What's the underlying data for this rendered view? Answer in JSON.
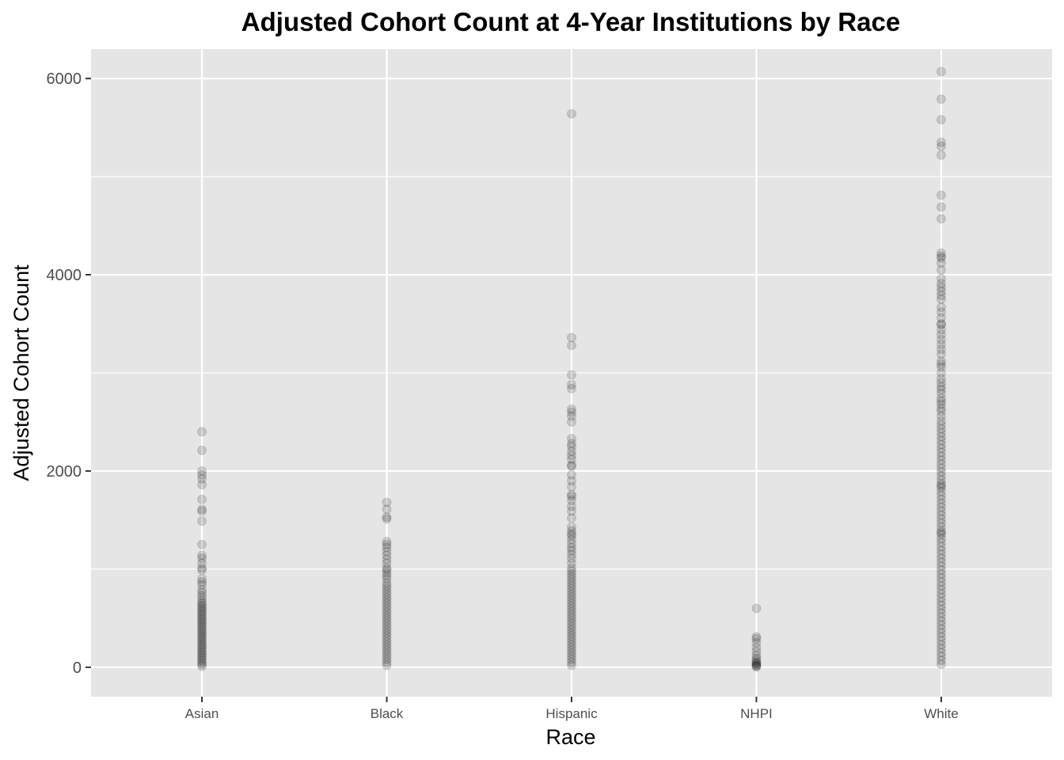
{
  "chart_data": {
    "type": "scatter",
    "title": "Adjusted Cohort Count at 4-Year Institutions by Race",
    "xlabel": "Race",
    "ylabel": "Adjusted Cohort Count",
    "categories": [
      "Asian",
      "Black",
      "Hispanic",
      "NHPI",
      "White"
    ],
    "y_ticks": [
      0,
      2000,
      4000,
      6000
    ],
    "ylim": [
      -300,
      6300
    ],
    "grid": true,
    "point_color": "#000000",
    "point_alpha": 0.15,
    "panel_color": "#e5e5e5",
    "grid_color": "#ffffff",
    "series": [
      {
        "category": "Asian",
        "values": [
          2400,
          2210,
          2000,
          1960,
          1920,
          1860,
          1710,
          1610,
          1590,
          1490,
          1250,
          1140,
          1110,
          1060,
          1010,
          990,
          900,
          870,
          840,
          790,
          760,
          730,
          700,
          670,
          650,
          630,
          610,
          590,
          570,
          550,
          530,
          510,
          490,
          470,
          450,
          430,
          410,
          390,
          370,
          350,
          330,
          310,
          290,
          270,
          250,
          230,
          210,
          190,
          170,
          150,
          130,
          110,
          90,
          70,
          50,
          30,
          10
        ]
      },
      {
        "category": "Black",
        "values": [
          1680,
          1610,
          1530,
          1510,
          1280,
          1250,
          1220,
          1180,
          1140,
          1100,
          1060,
          1010,
          990,
          960,
          930,
          900,
          860,
          830,
          800,
          770,
          740,
          710,
          680,
          650,
          620,
          590,
          560,
          530,
          500,
          470,
          440,
          410,
          380,
          350,
          320,
          290,
          260,
          230,
          200,
          170,
          140,
          110,
          80,
          50,
          20
        ]
      },
      {
        "category": "Hispanic",
        "values": [
          5640,
          3360,
          3280,
          2980,
          2880,
          2840,
          2630,
          2600,
          2560,
          2500,
          2330,
          2280,
          2250,
          2200,
          2160,
          2120,
          2060,
          2050,
          1960,
          1900,
          1840,
          1760,
          1740,
          1700,
          1640,
          1590,
          1520,
          1430,
          1390,
          1360,
          1340,
          1300,
          1260,
          1220,
          1190,
          1150,
          1110,
          1060,
          1010,
          980,
          950,
          920,
          890,
          860,
          830,
          800,
          770,
          740,
          710,
          680,
          650,
          620,
          590,
          560,
          530,
          500,
          470,
          440,
          410,
          380,
          350,
          320,
          290,
          260,
          230,
          200,
          170,
          140,
          110,
          80,
          50,
          20
        ]
      },
      {
        "category": "NHPI",
        "values": [
          600,
          310,
          290,
          250,
          200,
          160,
          120,
          90,
          70,
          50,
          40,
          30,
          20,
          10,
          5
        ]
      },
      {
        "category": "White",
        "values": [
          6070,
          5790,
          5580,
          5350,
          5310,
          5220,
          4810,
          4690,
          4570,
          4220,
          4190,
          4170,
          4120,
          4050,
          3960,
          3910,
          3870,
          3830,
          3790,
          3750,
          3670,
          3620,
          3560,
          3500,
          3490,
          3440,
          3390,
          3340,
          3290,
          3240,
          3190,
          3120,
          3090,
          3060,
          3000,
          2940,
          2900,
          2860,
          2830,
          2790,
          2740,
          2710,
          2680,
          2640,
          2610,
          2560,
          2510,
          2470,
          2430,
          2390,
          2350,
          2310,
          2270,
          2230,
          2190,
          2150,
          2110,
          2070,
          2030,
          1990,
          1950,
          1910,
          1870,
          1850,
          1830,
          1790,
          1750,
          1710,
          1670,
          1630,
          1590,
          1550,
          1510,
          1470,
          1430,
          1390,
          1370,
          1350,
          1310,
          1270,
          1230,
          1190,
          1150,
          1110,
          1070,
          1030,
          990,
          950,
          910,
          870,
          830,
          790,
          750,
          710,
          670,
          630,
          590,
          550,
          510,
          470,
          430,
          390,
          350,
          310,
          270,
          230,
          190,
          150,
          110,
          70,
          30
        ]
      }
    ]
  }
}
